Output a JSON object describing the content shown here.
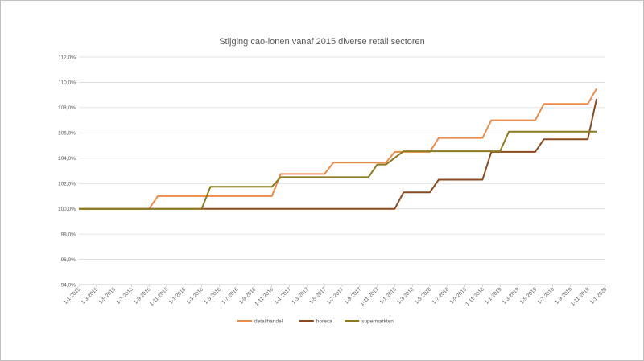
{
  "chart_data": {
    "type": "line",
    "title": "Stijging cao-lonen vanaf 2015 diverse retail sectoren",
    "xlabel": "",
    "ylabel": "",
    "ylim": [
      94,
      112
    ],
    "y_ticks": [
      "94,0%",
      "96,0%",
      "98,0%",
      "100,0%",
      "102,0%",
      "104,0%",
      "106,0%",
      "108,0%",
      "110,0%",
      "112,0%"
    ],
    "x_tick_labels": [
      "1-1-2015",
      "1-3-2015",
      "1-5-2015",
      "1-7-2015",
      "1-9-2015",
      "1-11-2015",
      "1-1-2016",
      "1-3-2016",
      "1-5-2016",
      "1-7-2016",
      "1-9-2016",
      "1-11-2016",
      "1-1-2017",
      "1-3-2017",
      "1-5-2017",
      "1-7-2017",
      "1-9-2017",
      "1-11-2017",
      "1-1-2018",
      "1-3-2018",
      "1-5-2018",
      "1-7-2018",
      "1-9-2018",
      "1-11-2018",
      "1-1-2019",
      "1-3-2019",
      "1-5-2019",
      "1-7-2019",
      "1-9-2019",
      "1-11-2019",
      "1-1-2020"
    ],
    "grid": true,
    "legend_position": "bottom",
    "series": [
      {
        "name": "detailhandel",
        "color": "#ED8B4A",
        "x": [
          "1-1-2015",
          "1-9-2015",
          "1-10-2015",
          "1-4-2016",
          "1-5-2016",
          "1-11-2016",
          "1-12-2016",
          "1-5-2017",
          "1-6-2017",
          "1-12-2017",
          "1-1-2018",
          "1-5-2018",
          "1-6-2018",
          "1-11-2018",
          "1-12-2018",
          "1-5-2019",
          "1-6-2019",
          "1-11-2019",
          "1-12-2019"
        ],
        "y": [
          100.0,
          100.0,
          101.0,
          101.0,
          101.0,
          101.0,
          102.75,
          102.75,
          103.65,
          103.65,
          104.5,
          104.5,
          105.6,
          105.6,
          107.0,
          107.0,
          108.3,
          108.3,
          109.5
        ]
      },
      {
        "name": "horeca",
        "color": "#8B4A1F",
        "x": [
          "1-1-2015",
          "1-3-2016",
          "1-1-2018",
          "1-2-2018",
          "1-5-2018",
          "1-6-2018",
          "1-11-2018",
          "1-12-2018",
          "1-5-2019",
          "1-6-2019",
          "1-11-2019",
          "1-12-2019"
        ],
        "y": [
          100.0,
          100.0,
          100.0,
          101.3,
          101.3,
          102.3,
          102.3,
          104.5,
          104.5,
          105.5,
          105.5,
          108.7
        ]
      },
      {
        "name": "supermarkten",
        "color": "#8C7A1E",
        "x": [
          "1-1-2015",
          "1-3-2016",
          "1-4-2016",
          "1-6-2016",
          "1-11-2016",
          "1-12-2016",
          "1-10-2017",
          "1-11-2017",
          "1-12-2017",
          "1-2-2018",
          "1-3-2018",
          "1-12-2018",
          "1-1-2019",
          "1-2-2019",
          "1-12-2019"
        ],
        "y": [
          100.0,
          100.0,
          101.75,
          101.75,
          101.75,
          102.5,
          102.5,
          103.5,
          103.5,
          104.55,
          104.55,
          104.55,
          104.55,
          106.1,
          106.1
        ]
      }
    ]
  }
}
